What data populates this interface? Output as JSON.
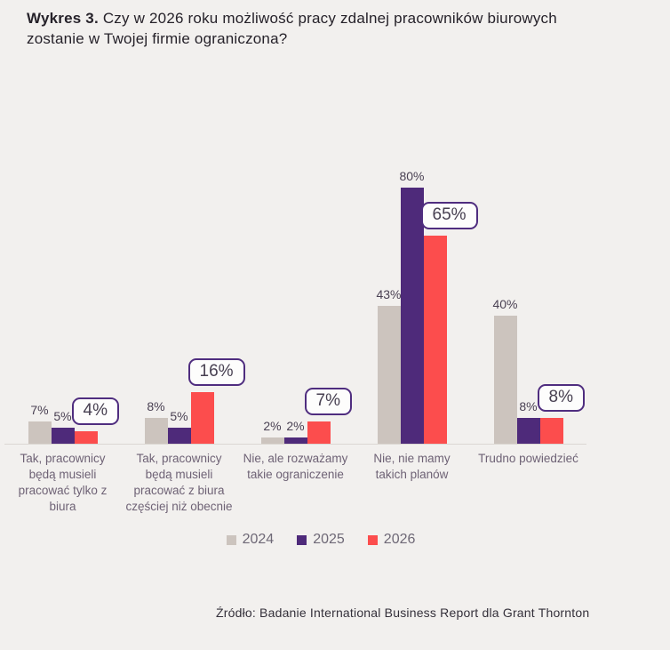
{
  "title": {
    "prefix": "Wykres 3.",
    "line1": "Czy w 2026 roku możliwość pracy zdalnej pracowników biurowych",
    "line2": "zostanie w Twojej firmie ograniczona?"
  },
  "source": {
    "text": "Źródło: Badanie International Business Report dla Grant Thornton"
  },
  "legend": {
    "items": [
      {
        "label": "2024",
        "color": "#ccc4be"
      },
      {
        "label": "2025",
        "color": "#4e2a7a"
      },
      {
        "label": "2026",
        "color": "#fc4d4d"
      }
    ]
  },
  "colors": {
    "background": "#f2f0ee",
    "series_2024": "#ccc4be",
    "series_2025": "#4e2a7a",
    "series_2026": "#fc4d4d",
    "axis_line": "#dbd7d3",
    "title_text": "#26222a",
    "category_text": "#6e6275",
    "value_text": "#4a4153",
    "callout_border": "#4f2d7f",
    "callout_text": "#474051",
    "legend_text": "#6e6876",
    "source_text": "#34303a"
  },
  "chart_data": {
    "type": "bar",
    "title": "Wykres 3. Czy w 2026 roku możliwość pracy zdalnej pracowników biurowych zostanie w Twojej firmie ograniczona?",
    "categories": [
      "Tak, pracownicy będą musieli pracować tylko z biura",
      "Tak, pracownicy będą musieli pracować z biura częściej niż obecnie",
      "Nie, ale rozważamy takie ograniczenie",
      "Nie, nie mamy takich planów",
      "Trudno powiedzieć"
    ],
    "category_lines": [
      [
        "Tak, pracownicy",
        "będą musieli",
        "pracować tylko z",
        "biura"
      ],
      [
        "Tak, pracownicy",
        "będą musieli",
        "pracować z biura",
        "częściej niż obecnie"
      ],
      [
        "Nie, ale rozważamy",
        "takie ograniczenie"
      ],
      [
        "Nie, nie mamy",
        "takich planów"
      ],
      [
        "Trudno powiedzieć"
      ]
    ],
    "series": [
      {
        "name": "2024",
        "color": "#ccc4be",
        "values": [
          7,
          8,
          2,
          43,
          40
        ]
      },
      {
        "name": "2025",
        "color": "#4e2a7a",
        "values": [
          5,
          5,
          2,
          80,
          8
        ]
      },
      {
        "name": "2026",
        "color": "#fc4d4d",
        "values": [
          4,
          16,
          7,
          65,
          8
        ],
        "highlighted": true
      }
    ],
    "value_suffix": "%",
    "xlabel": "",
    "ylabel": "",
    "ylim": [
      0,
      85
    ],
    "grid": false,
    "legend_position": "bottom",
    "value_labels": "above-bars",
    "highlight_style": "rounded-callout-box-on-2026",
    "source": "Źródło: Badanie International Business Report dla Grant Thornton"
  }
}
